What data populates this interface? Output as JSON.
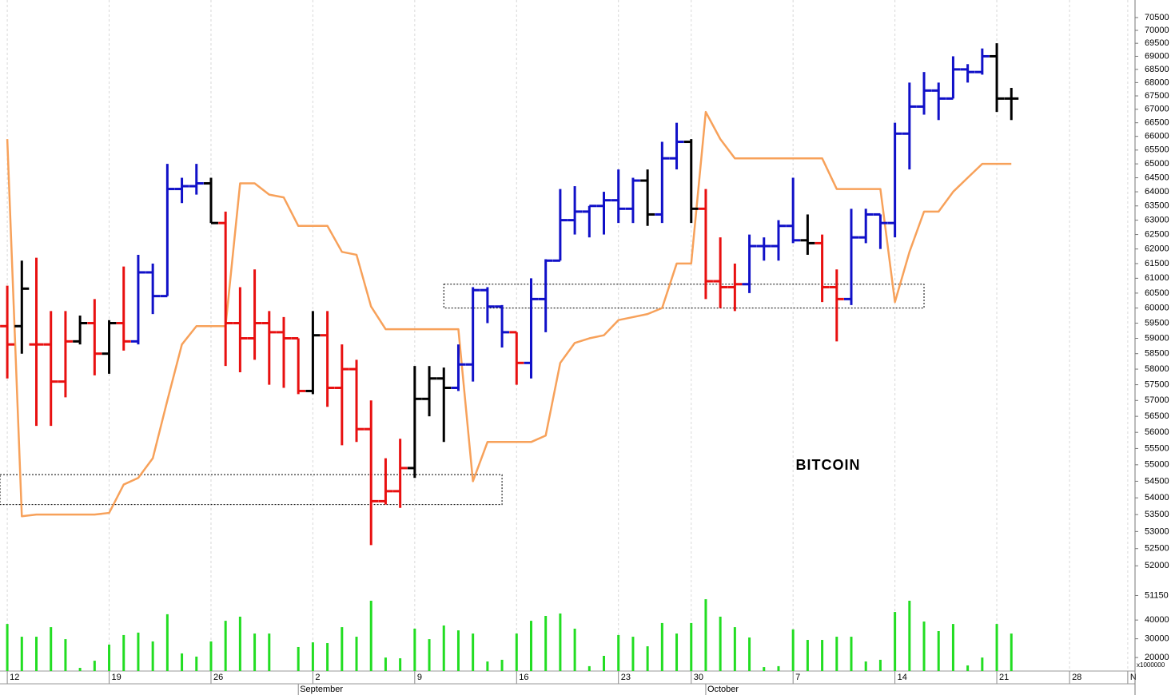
{
  "chart_data": {
    "type": "ohlc",
    "annotation": "BITCOIN",
    "xlim": [
      -0.5,
      77.5
    ],
    "xticks": [
      {
        "value": 0,
        "label": "12"
      },
      {
        "value": 7,
        "label": "19"
      },
      {
        "value": 14,
        "label": "26"
      },
      {
        "value": 21,
        "label": "2"
      },
      {
        "value": 28,
        "label": "9"
      },
      {
        "value": 35,
        "label": "16"
      },
      {
        "value": 42,
        "label": "23"
      },
      {
        "value": 47,
        "label": "30"
      },
      {
        "value": 54,
        "label": "7"
      },
      {
        "value": 61,
        "label": "14"
      },
      {
        "value": 68,
        "label": "21"
      },
      {
        "value": 73,
        "label": "28"
      },
      {
        "value": 77,
        "label": "N"
      }
    ],
    "month_ticks": [
      {
        "value": 20,
        "label": "September"
      },
      {
        "value": 48,
        "label": "October"
      }
    ],
    "ylim": [
      49050,
      71190
    ],
    "log_y": true,
    "yticks": [
      70500,
      70000,
      69500,
      69000,
      68500,
      68000,
      67500,
      67000,
      66500,
      66000,
      65500,
      65000,
      64500,
      64000,
      63500,
      63000,
      62500,
      62000,
      61500,
      61000,
      60500,
      60000,
      59500,
      59000,
      58500,
      58000,
      57500,
      57000,
      56500,
      56000,
      55500,
      55000,
      54500,
      54000,
      53500,
      53000,
      52500,
      52000,
      51150
    ],
    "grid": true,
    "open": [
      59400,
      59400,
      58800,
      58800,
      57600,
      58900,
      59500,
      58500,
      59500,
      58900,
      61200,
      60400,
      64100,
      64200,
      64300,
      62900,
      59500,
      59000,
      59500,
      59200,
      59000,
      57300,
      59100,
      57400,
      58000,
      56100,
      53900,
      54200,
      54900,
      57050,
      57700,
      57400,
      58150,
      60600,
      60050,
      59200,
      58200,
      60300,
      61600,
      63000,
      63300,
      63500,
      63700,
      63400,
      64400,
      63200,
      65200,
      65800,
      63400,
      60900,
      60700,
      60800,
      62100,
      62100,
      62800,
      62300,
      62200,
      60700,
      60300,
      62400,
      63200,
      62900,
      66100,
      67100,
      67700,
      67400,
      68500,
      68400,
      69000,
      67400
    ],
    "high": [
      60750,
      61600,
      61700,
      59900,
      59900,
      59750,
      60300,
      59600,
      61400,
      61800,
      61500,
      65000,
      64500,
      65000,
      64500,
      63300,
      60700,
      61300,
      59900,
      59700,
      59000,
      59900,
      59900,
      58800,
      58300,
      57000,
      55200,
      55800,
      58100,
      58100,
      58050,
      58800,
      60700,
      60700,
      60100,
      59200,
      61000,
      61650,
      64100,
      64200,
      63500,
      64000,
      64800,
      64500,
      64800,
      65800,
      66500,
      65900,
      64100,
      62400,
      61500,
      62500,
      62400,
      63000,
      64500,
      63200,
      62500,
      61300,
      63400,
      63400,
      63200,
      66500,
      68000,
      68400,
      68000,
      69000,
      68700,
      69300,
      69500,
      67800
    ],
    "low": [
      57700,
      58500,
      56200,
      56200,
      57100,
      58800,
      57800,
      57850,
      58600,
      58800,
      59800,
      60400,
      63600,
      63900,
      62900,
      58100,
      57900,
      58300,
      57500,
      57400,
      57200,
      57200,
      56800,
      55600,
      55700,
      52600,
      53800,
      53700,
      54600,
      56500,
      55700,
      57300,
      57600,
      59500,
      58700,
      57500,
      57700,
      59200,
      61600,
      62500,
      62400,
      62500,
      62900,
      62900,
      62800,
      62900,
      64800,
      62900,
      60300,
      60000,
      59900,
      60500,
      61600,
      61600,
      62200,
      61800,
      60200,
      58900,
      60100,
      62200,
      62000,
      62400,
      64800,
      66800,
      66600,
      67400,
      68000,
      68300,
      66900,
      66600
    ],
    "close": [
      58800,
      60650,
      58800,
      57600,
      58900,
      59500,
      58500,
      59500,
      58900,
      61200,
      60400,
      64100,
      64200,
      64300,
      62900,
      59500,
      59000,
      59500,
      59200,
      59000,
      57300,
      59100,
      57400,
      58000,
      56100,
      53900,
      54200,
      54900,
      57050,
      57700,
      57400,
      58150,
      60600,
      60050,
      59200,
      58200,
      60300,
      61600,
      63000,
      63300,
      63500,
      63700,
      63400,
      64400,
      63200,
      65200,
      65800,
      63400,
      60900,
      60700,
      60800,
      62100,
      62100,
      62800,
      62300,
      62200,
      60700,
      60300,
      62400,
      63200,
      62900,
      66100,
      67100,
      67700,
      67400,
      68500,
      68400,
      69000,
      67400,
      67400
    ],
    "bar_colors": [
      "#e81010",
      "#000000",
      "#e81010",
      "#e81010",
      "#e81010",
      "#000000",
      "#e81010",
      "#000000",
      "#e81010",
      "#1010c8",
      "#1010c8",
      "#1010c8",
      "#1010c8",
      "#1010c8",
      "#000000",
      "#e81010",
      "#e81010",
      "#e81010",
      "#e81010",
      "#e81010",
      "#e81010",
      "#000000",
      "#e81010",
      "#e81010",
      "#e81010",
      "#e81010",
      "#e81010",
      "#e81010",
      "#000000",
      "#000000",
      "#000000",
      "#1010c8",
      "#1010c8",
      "#1010c8",
      "#1010c8",
      "#e81010",
      "#1010c8",
      "#1010c8",
      "#1010c8",
      "#1010c8",
      "#1010c8",
      "#1010c8",
      "#1010c8",
      "#1010c8",
      "#000000",
      "#1010c8",
      "#1010c8",
      "#000000",
      "#e81010",
      "#e81010",
      "#e81010",
      "#1010c8",
      "#1010c8",
      "#1010c8",
      "#1010c8",
      "#000000",
      "#e81010",
      "#e81010",
      "#1010c8",
      "#1010c8",
      "#1010c8",
      "#1010c8",
      "#1010c8",
      "#1010c8",
      "#1010c8",
      "#1010c8",
      "#1010c8",
      "#1010c8",
      "#000000",
      "#000000"
    ],
    "line": {
      "color": "#f7a15a",
      "values": [
        65900,
        53450,
        53500,
        53500,
        53500,
        53500,
        53500,
        53550,
        54400,
        54600,
        55200,
        57000,
        58800,
        59400,
        59400,
        59400,
        64300,
        64300,
        63900,
        63800,
        62800,
        62800,
        62800,
        61900,
        61800,
        60050,
        59300,
        59300,
        59300,
        59300,
        59300,
        59300,
        54500,
        55700,
        55700,
        55700,
        55700,
        55900,
        58200,
        58850,
        59000,
        59100,
        59600,
        59700,
        59800,
        60000,
        61500,
        61500,
        66900,
        65900,
        65200,
        65200,
        65200,
        65200,
        65200,
        65200,
        65200,
        64100,
        64100,
        64100,
        64100,
        60200,
        61900,
        63300,
        63300,
        64000,
        64500,
        65000,
        65000,
        65000
      ]
    },
    "volume": {
      "color": "#22dd22",
      "ylim": [
        12800,
        52000
      ],
      "yticks": [
        20000,
        30000,
        40000
      ],
      "unit_label": "x1000000",
      "values": [
        37900,
        31100,
        31100,
        36200,
        29800,
        14500,
        18300,
        26900,
        32000,
        33300,
        28600,
        43100,
        22200,
        20500,
        28600,
        39600,
        41800,
        32800,
        32800,
        null,
        25600,
        28100,
        27700,
        36200,
        31100,
        50300,
        20000,
        19600,
        35400,
        29800,
        37100,
        34500,
        32800,
        17900,
        18800,
        32800,
        39600,
        42200,
        43500,
        35400,
        15400,
        20900,
        32000,
        31100,
        26000,
        38400,
        32800,
        38400,
        51100,
        41800,
        36200,
        30700,
        14900,
        15400,
        35000,
        29400,
        29400,
        31100,
        31100,
        17900,
        18800,
        44300,
        50300,
        39200,
        34100,
        37900,
        15800,
        20000,
        37900,
        32800
      ]
    },
    "zones": [
      {
        "start": -0.5,
        "end": 34,
        "low": 53800,
        "high": 54700
      },
      {
        "start": 30,
        "end": 63,
        "low": 60000,
        "high": 60800
      }
    ]
  }
}
